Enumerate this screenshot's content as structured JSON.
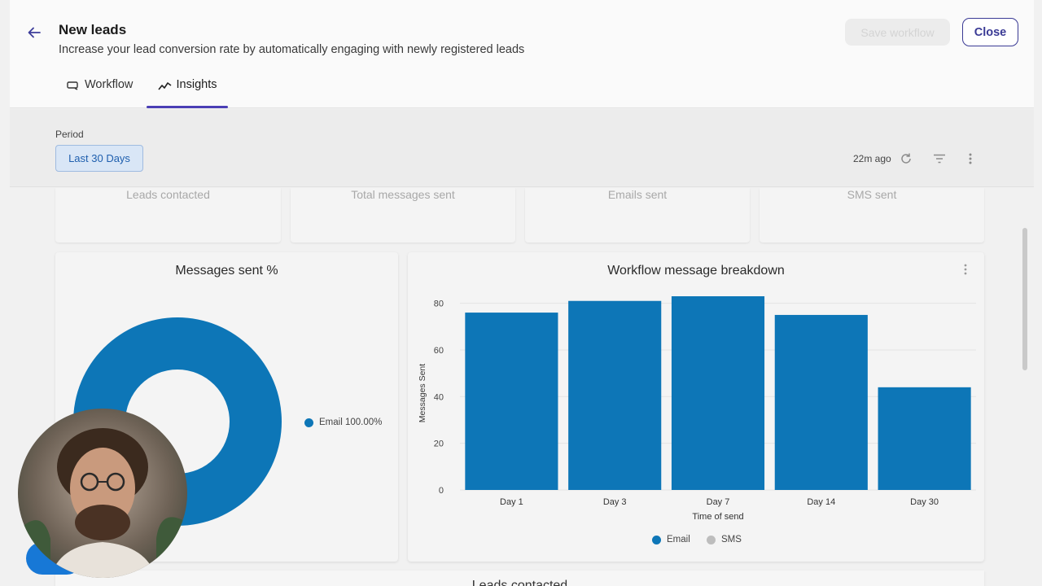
{
  "header": {
    "title": "New leads",
    "subtitle": "Increase your lead conversion rate by automatically engaging with newly registered leads",
    "save_label": "Save workflow",
    "close_label": "Close",
    "tabs": [
      {
        "label": "Workflow",
        "icon": "workflow-icon"
      },
      {
        "label": "Insights",
        "icon": "insights-icon",
        "active": true
      }
    ]
  },
  "period": {
    "label": "Period",
    "selected": "Last 30 Days",
    "updated": "22m ago"
  },
  "stats": [
    {
      "label": "Leads contacted"
    },
    {
      "label": "Total messages sent"
    },
    {
      "label": "Emails sent"
    },
    {
      "label": "SMS sent"
    }
  ],
  "messages_panel": {
    "title": "Messages sent %",
    "legend": [
      {
        "label": "Email 100.00%",
        "color": "#0d76b7"
      }
    ]
  },
  "breakdown_panel": {
    "title": "Workflow message breakdown",
    "legend": [
      {
        "label": "Email",
        "color": "#0d76b7"
      },
      {
        "label": "SMS",
        "color": "#bdbdbd"
      }
    ]
  },
  "chart_data": [
    {
      "type": "pie",
      "title": "Messages sent %",
      "labels": [
        "Email"
      ],
      "values": [
        100.0
      ],
      "colors": [
        "#0d76b7"
      ]
    },
    {
      "type": "bar",
      "title": "Workflow message breakdown",
      "xlabel": "Time of send",
      "ylabel": "Messages Sent",
      "categories": [
        "Day 1",
        "Day 3",
        "Day 7",
        "Day 14",
        "Day 30"
      ],
      "series": [
        {
          "name": "Email",
          "values": [
            76,
            81,
            83,
            75,
            44
          ],
          "color": "#0d76b7"
        },
        {
          "name": "SMS",
          "values": [
            0,
            0,
            0,
            0,
            0
          ],
          "color": "#bdbdbd"
        }
      ],
      "ylim": [
        0,
        83
      ],
      "yticks": [
        0,
        20,
        40,
        60,
        80
      ],
      "grid": true,
      "legend": "bottom"
    }
  ],
  "bottom_card": {
    "title": "Leads contacted"
  }
}
